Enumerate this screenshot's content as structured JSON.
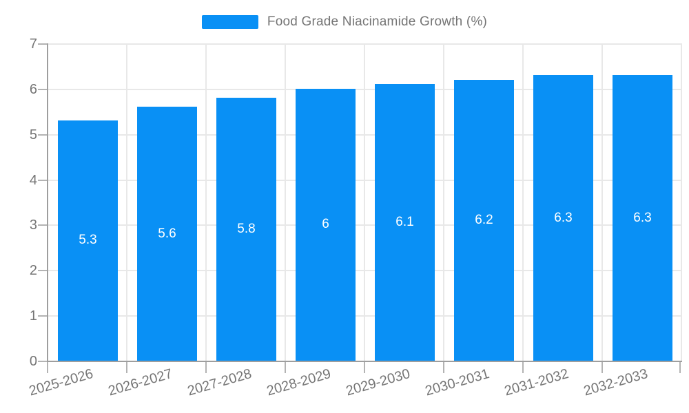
{
  "legend": {
    "label": "Food Grade Niacinamide Growth (%)"
  },
  "chart_data": {
    "type": "bar",
    "title": "Food Grade Niacinamide Growth (%)",
    "categories": [
      "2025-2026",
      "2026-2027",
      "2027-2028",
      "2028-2029",
      "2029-2030",
      "2030-2031",
      "2031-2032",
      "2032-2033"
    ],
    "series": [
      {
        "name": "Food Grade Niacinamide Growth (%)",
        "values": [
          5.3,
          5.6,
          5.8,
          6,
          6.1,
          6.2,
          6.3,
          6.3
        ]
      }
    ],
    "data_labels": [
      "5.3",
      "5.6",
      "5.8",
      "6",
      "6.1",
      "6.2",
      "6.3",
      "6.3"
    ],
    "xlabel": "",
    "ylabel": "",
    "ylim": [
      0,
      7
    ],
    "y_ticks": [
      0,
      1,
      2,
      3,
      4,
      5,
      6,
      7
    ],
    "grid": "on",
    "legend_position": "top-center"
  },
  "colors": {
    "bar": "#0990f5",
    "axis": "#9e9e9e",
    "grid": "#e8e8e8",
    "tick": "#b3b3b3",
    "text": "#757575",
    "bar_label": "#ffffff",
    "background": "#ffffff"
  }
}
